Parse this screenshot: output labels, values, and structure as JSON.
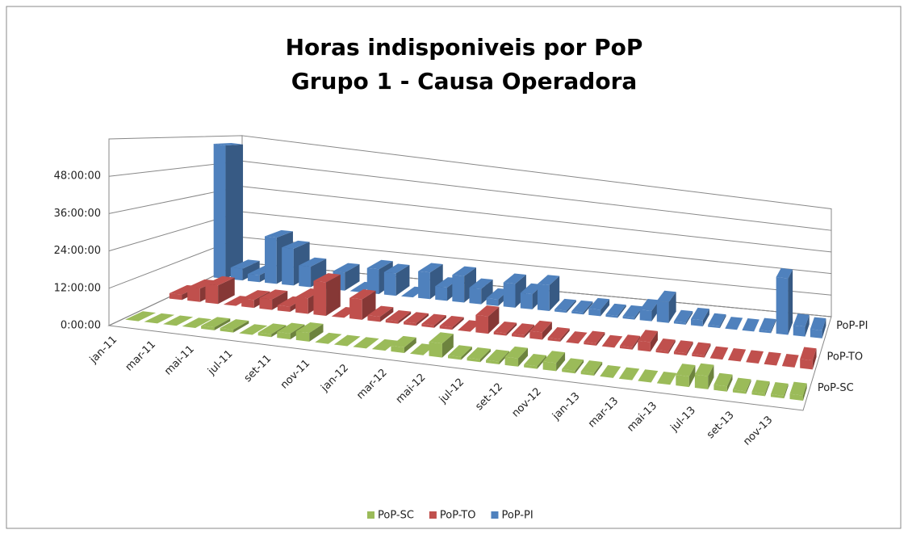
{
  "chart_data": {
    "type": "bar3d",
    "title": [
      "Horas indisponiveis por PoP",
      "Grupo 1 - Causa Operadora"
    ],
    "categories": [
      "jan-11",
      null,
      "mar-11",
      null,
      "mai-11",
      null,
      "jul-11",
      null,
      "set-11",
      null,
      "nov-11",
      null,
      "jan-12",
      null,
      "mar-12",
      null,
      "mai-12",
      null,
      "jul-12",
      null,
      "set-12",
      null,
      "nov-12",
      null,
      "jan-13",
      null,
      "mar-13",
      null,
      "mai-13",
      null,
      "jul-13",
      null,
      "set-13",
      null,
      "nov-13",
      null
    ],
    "series": [
      {
        "name": "PoP-SC",
        "color": "#9bbb59",
        "values": [
          0,
          0,
          0,
          0,
          1,
          1,
          0,
          1,
          2,
          3,
          0,
          0,
          0,
          0,
          2,
          0,
          5,
          1,
          1,
          1,
          3,
          1,
          3,
          1,
          1,
          0,
          0,
          0,
          0,
          4,
          5,
          2,
          1,
          1,
          1,
          2
        ]
      },
      {
        "name": "PoP-TO",
        "color": "#c0504d",
        "values": [
          2,
          5,
          7,
          0,
          3,
          4,
          2,
          6,
          13,
          0,
          8,
          2,
          1,
          1,
          1,
          1,
          0,
          7,
          1,
          1,
          3,
          1,
          0,
          1,
          0,
          1,
          4,
          1,
          1,
          1,
          0,
          0,
          0,
          0,
          0,
          4
        ]
      },
      {
        "name": "PoP-PI",
        "color": "#4f81bd",
        "values": [
          57,
          5,
          3,
          20,
          16,
          9,
          0,
          8,
          0,
          11,
          10,
          0,
          12,
          6,
          12,
          7,
          3,
          11,
          7,
          12,
          1,
          1,
          3,
          1,
          1,
          5,
          10,
          1,
          3,
          1,
          0,
          0,
          1,
          28,
          5,
          4
        ]
      }
    ],
    "ylim": [
      0,
      60
    ],
    "yticks": [
      {
        "value": 0,
        "label": "0:00:00"
      },
      {
        "value": 12,
        "label": "12:00:00"
      },
      {
        "value": 24,
        "label": "24:00:00"
      },
      {
        "value": 36,
        "label": "36:00:00"
      },
      {
        "value": 48,
        "label": "48:00:00"
      }
    ],
    "grid": true
  }
}
